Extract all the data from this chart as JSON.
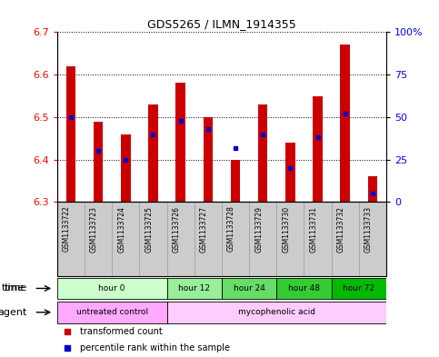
{
  "title": "GDS5265 / ILMN_1914355",
  "samples": [
    "GSM1133722",
    "GSM1133723",
    "GSM1133724",
    "GSM1133725",
    "GSM1133726",
    "GSM1133727",
    "GSM1133728",
    "GSM1133729",
    "GSM1133730",
    "GSM1133731",
    "GSM1133732",
    "GSM1133733"
  ],
  "bar_values": [
    6.62,
    6.49,
    6.46,
    6.53,
    6.58,
    6.5,
    6.4,
    6.53,
    6.44,
    6.55,
    6.67,
    6.36
  ],
  "percentile_values": [
    50,
    30,
    25,
    40,
    48,
    43,
    32,
    40,
    20,
    38,
    52,
    5
  ],
  "bar_bottom": 6.3,
  "ylim": [
    6.3,
    6.7
  ],
  "yticks": [
    6.3,
    6.4,
    6.5,
    6.6,
    6.7
  ],
  "right_yticks": [
    0,
    25,
    50,
    75,
    100
  ],
  "right_ylabels": [
    "0",
    "25",
    "50",
    "75",
    "100%"
  ],
  "bar_color": "#cc0000",
  "percentile_color": "#0000cc",
  "time_groups": [
    {
      "label": "hour 0",
      "start": 0,
      "end": 4,
      "color": "#ccffcc"
    },
    {
      "label": "hour 12",
      "start": 4,
      "end": 6,
      "color": "#99ee99"
    },
    {
      "label": "hour 24",
      "start": 6,
      "end": 8,
      "color": "#66dd66"
    },
    {
      "label": "hour 48",
      "start": 8,
      "end": 10,
      "color": "#33cc33"
    },
    {
      "label": "hour 72",
      "start": 10,
      "end": 12,
      "color": "#00bb00"
    }
  ],
  "agent_groups": [
    {
      "label": "untreated control",
      "start": 0,
      "end": 4,
      "color": "#ffaaff"
    },
    {
      "label": "mycophenolic acid",
      "start": 4,
      "end": 12,
      "color": "#ffccff"
    }
  ],
  "grid_color": "#000000",
  "background_color": "#ffffff",
  "sample_bg_color": "#cccccc",
  "bar_width": 0.35,
  "time_label": "time",
  "agent_label": "agent",
  "legend_items": [
    {
      "label": "transformed count",
      "color": "#cc0000"
    },
    {
      "label": "percentile rank within the sample",
      "color": "#0000cc"
    }
  ]
}
